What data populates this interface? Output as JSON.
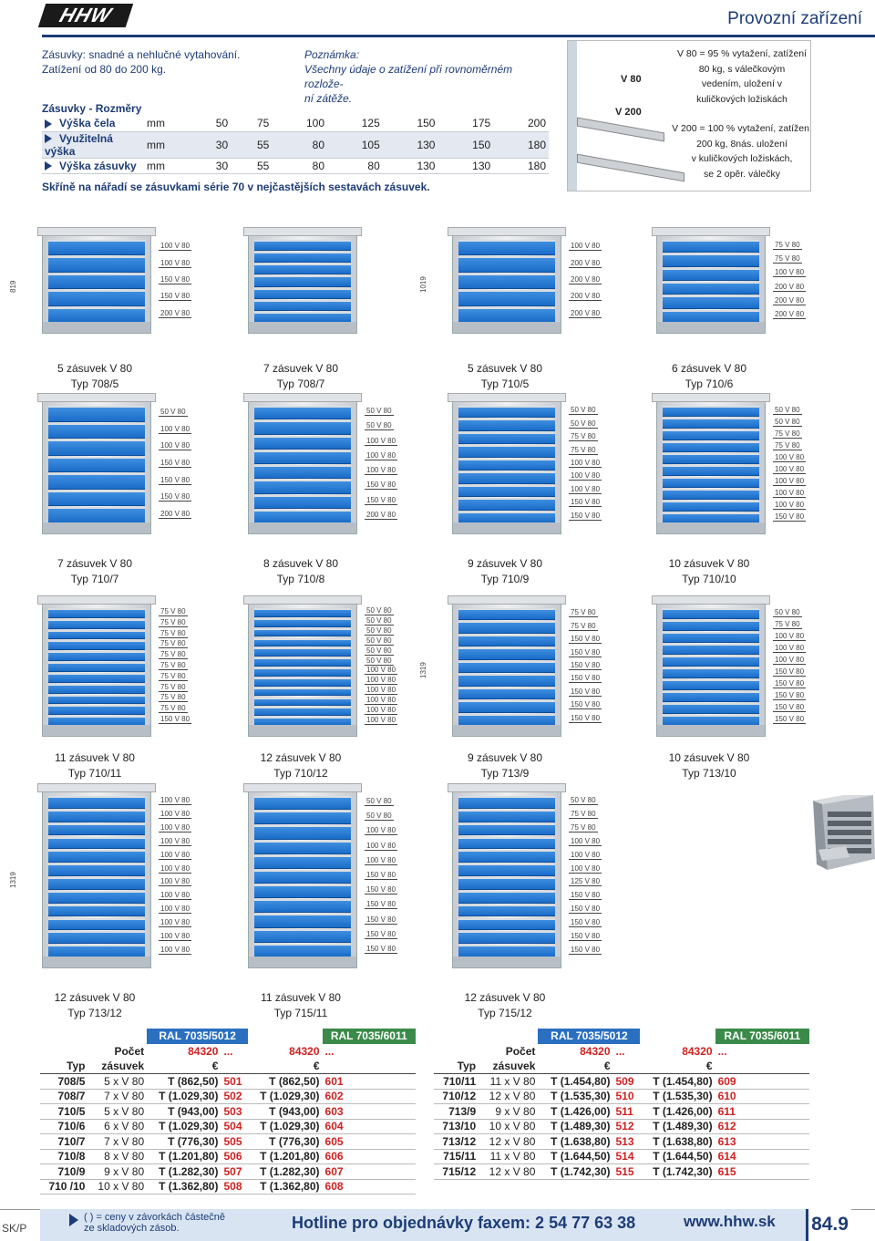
{
  "header": {
    "logo": "HHW",
    "title": "Provozní zařízení"
  },
  "intro": [
    "Zásuvky: snadné a nehlučné vytahování.",
    "Zatížení od 80 do 200 kg."
  ],
  "note": {
    "label": "Poznámka:",
    "text1": "Všechny údaje o zatížení při rovnoměrném rozlože-",
    "text2": "ní zátěže."
  },
  "dims": {
    "heading": "Zásuvky - Rozměry",
    "rows": [
      {
        "label": "Výška čela",
        "unit": "mm",
        "values": [
          "50",
          "75",
          "100",
          "125",
          "150",
          "175",
          "200"
        ]
      },
      {
        "label": "Využitelná výška",
        "unit": "mm",
        "values": [
          "30",
          "55",
          "80",
          "105",
          "130",
          "150",
          "180"
        ]
      },
      {
        "label": "Výška zásuvky",
        "unit": "mm",
        "values": [
          "30",
          "55",
          "80",
          "80",
          "130",
          "130",
          "180"
        ]
      }
    ]
  },
  "series_text": "Skříně na nářadí se zásuvkami série 70 v nejčastějších sestavách zásuvek.",
  "illustration": {
    "v80": "V 80",
    "v200": "V 200",
    "t1": [
      "V  80 = 95 % vytažení, zatížení",
      "80 kg, s válečkovým",
      "vedením, uložení v",
      "kuličkových ložiskách"
    ],
    "t2": [
      "V 200 = 100 % vytažení, zatížení",
      "200 kg, 8nás. uložení",
      "v kuličkových ložiskách,",
      "se 2 opěr. válečky"
    ]
  },
  "cabinets": [
    {
      "cap1": "5 zásuvek V 80",
      "cap2": "Typ 708/5",
      "h": "819",
      "labels": [
        "100  V 80",
        "100  V 80",
        "150  V 80",
        "150  V 80",
        "200  V 80"
      ]
    },
    {
      "cap1": "7 zásuvek V 80",
      "cap2": "Typ 708/7",
      "h": "",
      "labels": []
    },
    {
      "cap1": "5 zásuvek V 80",
      "cap2": "Typ 710/5",
      "h": "1019",
      "labels": [
        "100  V 80",
        "200  V 80",
        "200  V 80",
        "200  V 80",
        "200  V 80"
      ]
    },
    {
      "cap1": "6 zásuvek V 80",
      "cap2": "Typ 710/6",
      "h": "",
      "labels": [
        "75  V 80",
        "75  V 80",
        "100  V 80",
        "200  V 80",
        "200  V 80",
        "200  V 80"
      ]
    },
    {
      "cap1": "7 zásuvek V 80",
      "cap2": "Typ 710/7",
      "h": "",
      "labels": [
        "50  V 80",
        "100  V 80",
        "100  V 80",
        "150  V 80",
        "150  V 80",
        "150  V 80",
        "200  V 80"
      ]
    },
    {
      "cap1": "8 zásuvek V 80",
      "cap2": "Typ 710/8",
      "h": "",
      "labels": [
        "50  V 80",
        "50  V 80",
        "100  V 80",
        "100  V 80",
        "100  V 80",
        "150  V 80",
        "150  V 80",
        "200  V 80"
      ]
    },
    {
      "cap1": "9 zásuvek V 80",
      "cap2": "Typ 710/9",
      "h": "",
      "labels": [
        "50  V 80",
        "50  V 80",
        "75  V 80",
        "75  V 80",
        "100  V 80",
        "100  V 80",
        "100  V 80",
        "150  V 80",
        "150  V 80"
      ]
    },
    {
      "cap1": "10 zásuvek V 80",
      "cap2": "Typ 710/10",
      "h": "",
      "labels": [
        "50  V 80",
        "50  V 80",
        "75  V 80",
        "75  V 80",
        "100  V 80",
        "100  V 80",
        "100  V 80",
        "100  V 80",
        "100  V 80",
        "150  V 80"
      ]
    },
    {
      "cap1": "11 zásuvek V 80",
      "cap2": "Typ 710/11",
      "h": "",
      "labels": [
        "75  V 80",
        "75  V 80",
        "75  V 80",
        "75  V 80",
        "75  V 80",
        "75  V 80",
        "75  V 80",
        "75  V 80",
        "75  V 80",
        "75  V 80",
        "150  V 80"
      ]
    },
    {
      "cap1": "12 zásuvek V 80",
      "cap2": "Typ 710/12",
      "h": "",
      "labels": [
        "50  V 80",
        "50  V 80",
        "50  V 80",
        "50  V 80",
        "50  V 80",
        "50  V 80",
        "100  V 80",
        "100  V 80",
        "100  V 80",
        "100  V 80",
        "100  V 80",
        "100  V 80"
      ]
    },
    {
      "cap1": "9 zásuvek V 80",
      "cap2": "Typ 713/9",
      "h": "1319",
      "labels": [
        "75  V 80",
        "75  V 80",
        "150  V 80",
        "150  V 80",
        "150  V 80",
        "150  V 80",
        "150  V 80",
        "150  V 80",
        "150  V 80"
      ]
    },
    {
      "cap1": "10 zásuvek V 80",
      "cap2": "Typ 713/10",
      "h": "",
      "labels": [
        "50  V 80",
        "75  V 80",
        "100  V 80",
        "100  V 80",
        "100  V 80",
        "150  V 80",
        "150  V 80",
        "150  V 80",
        "150  V 80",
        "150  V 80"
      ]
    },
    {
      "cap1": "12 zásuvek V 80",
      "cap2": "Typ 713/12",
      "h": "1319",
      "labels": [
        "100  V 80",
        "100  V 80",
        "100  V 80",
        "100  V 80",
        "100  V 80",
        "100  V 80",
        "100  V 80",
        "100  V 80",
        "100  V 80",
        "100  V 80",
        "100  V 80",
        "100  V 80"
      ]
    },
    {
      "cap1": "11 zásuvek V 80",
      "cap2": "Typ 715/11",
      "h": "",
      "labels": [
        "50  V 80",
        "50  V 80",
        "100  V 80",
        "100  V 80",
        "100  V 80",
        "150  V 80",
        "150  V 80",
        "150  V 80",
        "150  V 80",
        "150  V 80",
        "150  V 80"
      ]
    },
    {
      "cap1": "12 zásuvek V 80",
      "cap2": "Typ 715/12",
      "h": "",
      "labels": [
        "50  V 80",
        "75  V 80",
        "75  V 80",
        "100  V 80",
        "100  V 80",
        "100  V 80",
        "125  V 80",
        "150  V 80",
        "150  V 80",
        "150  V 80",
        "150  V 80",
        "150  V 80"
      ]
    }
  ],
  "price_head": {
    "ral1": "RAL 7035/5012",
    "ral2": "RAL 7035/6011",
    "pocet": "Počet",
    "zasuvek": "zásuvek",
    "typ": "Typ",
    "code": "84320",
    "dots": "...",
    "eur": "€"
  },
  "table_left": [
    {
      "typ": "708/5",
      "n": "5 x V 80",
      "p1": "T (862,50)",
      "c1": "501",
      "p2": "T (862,50)",
      "c2": "601"
    },
    {
      "typ": "708/7",
      "n": "7 x V 80",
      "p1": "T (1.029,30)",
      "c1": "502",
      "p2": "T (1.029,30)",
      "c2": "602"
    },
    {
      "typ": "710/5",
      "n": "5 x V 80",
      "p1": "T (943,00)",
      "c1": "503",
      "p2": "T (943,00)",
      "c2": "603"
    },
    {
      "typ": "710/6",
      "n": "6 x V 80",
      "p1": "T (1.029,30)",
      "c1": "504",
      "p2": "T (1.029,30)",
      "c2": "604"
    },
    {
      "typ": "710/7",
      "n": "7 x V 80",
      "p1": "T (776,30)",
      "c1": "505",
      "p2": "T (776,30)",
      "c2": "605"
    },
    {
      "typ": "710/8",
      "n": "8 x V 80",
      "p1": "T (1.201,80)",
      "c1": "506",
      "p2": "T (1.201,80)",
      "c2": "606"
    },
    {
      "typ": "710/9",
      "n": "9 x V 80",
      "p1": "T (1.282,30)",
      "c1": "507",
      "p2": "T (1.282,30)",
      "c2": "607"
    },
    {
      "typ": "710 /10",
      "n": "10 x V 80",
      "p1": "T (1.362,80)",
      "c1": "508",
      "p2": "T (1.362,80)",
      "c2": "608"
    }
  ],
  "table_right": [
    {
      "typ": "710/11",
      "n": "11 x V 80",
      "p1": "T (1.454,80)",
      "c1": "509",
      "p2": "T (1.454,80)",
      "c2": "609"
    },
    {
      "typ": "710/12",
      "n": "12 x V 80",
      "p1": "T (1.535,30)",
      "c1": "510",
      "p2": "T (1.535,30)",
      "c2": "610"
    },
    {
      "typ": "713/9",
      "n": "9 x V 80",
      "p1": "T (1.426,00)",
      "c1": "511",
      "p2": "T (1.426,00)",
      "c2": "611"
    },
    {
      "typ": "713/10",
      "n": "10 x V 80",
      "p1": "T (1.489,30)",
      "c1": "512",
      "p2": "T (1.489,30)",
      "c2": "612"
    },
    {
      "typ": "713/12",
      "n": "12 x V 80",
      "p1": "T (1.638,80)",
      "c1": "513",
      "p2": "T (1.638,80)",
      "c2": "613"
    },
    {
      "typ": "715/11",
      "n": "11 x V 80",
      "p1": "T (1.644,50)",
      "c1": "514",
      "p2": "T (1.644,50)",
      "c2": "614"
    },
    {
      "typ": "715/12",
      "n": "12 x V 80",
      "p1": "T (1.742,30)",
      "c1": "515",
      "p2": "T (1.742,30)",
      "c2": "615"
    }
  ],
  "footer": {
    "lang": "SK/P",
    "note1": "( ) = ceny v závorkách částečně",
    "note2": "ze skladových zásob.",
    "hotline": "Hotline pro objednávky faxem: 2 54 77 63 38",
    "www": "www.hhw.sk",
    "page": "84.9"
  }
}
